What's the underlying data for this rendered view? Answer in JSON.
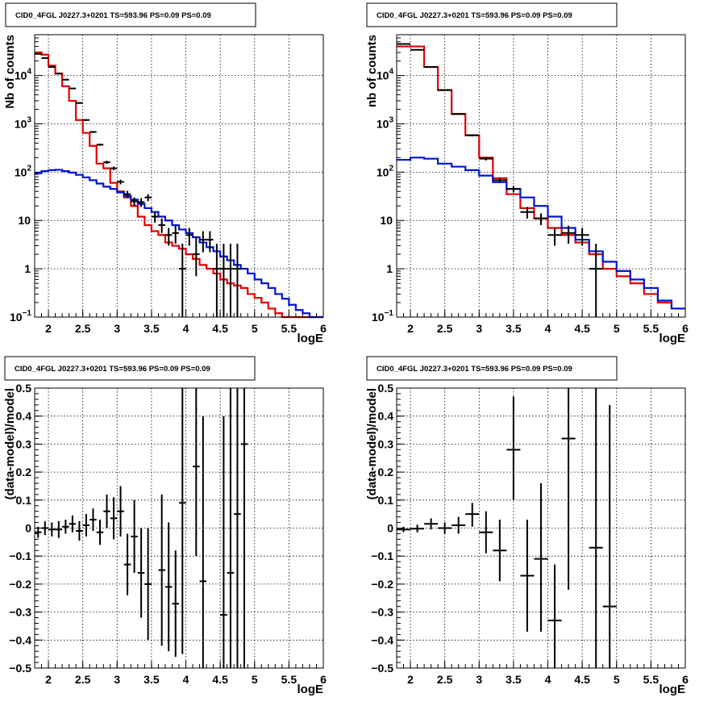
{
  "colors": {
    "total_model": "#e00000",
    "source_model": "#0014d2",
    "data": "#000000"
  },
  "chart_data": [
    {
      "type": "line",
      "title": "CID0_4FGL J0227.3+0201 TS=593.96 PS=0.09 PS=0.09",
      "xlabel": "logE",
      "ylabel": "Nb of counts",
      "xlim": [
        1.8,
        6.0
      ],
      "ylim": [
        0.1,
        70000
      ],
      "yscale": "log",
      "grid": true,
      "x_ticks": [
        "2",
        "2.5",
        "3",
        "3.5",
        "4",
        "4.5",
        "5",
        "5.5",
        "6"
      ],
      "y_ticks": [
        {
          "v": 0.1,
          "base": "10",
          "exp": "−1"
        },
        {
          "v": 1,
          "base": "1",
          "exp": ""
        },
        {
          "v": 10,
          "base": "10",
          "exp": ""
        },
        {
          "v": 100,
          "base": "10",
          "exp": "2"
        },
        {
          "v": 1000,
          "base": "10",
          "exp": "3"
        },
        {
          "v": 10000,
          "base": "10",
          "exp": "4"
        }
      ],
      "bin_width": 0.1,
      "series": [
        {
          "kind": "total_model",
          "x_start": 1.8,
          "values": [
            30000,
            27000,
            16000,
            11000,
            6000,
            3000,
            1200,
            650,
            350,
            150,
            120,
            60,
            40,
            30,
            20,
            12,
            8,
            6,
            5,
            3.5,
            3,
            2.6,
            2,
            1.6,
            1.2,
            1,
            0.8,
            0.6,
            0.5,
            0.45,
            0.4,
            0.3,
            0.25,
            0.2,
            0.15,
            0.12,
            0.1,
            0.09,
            0.08,
            0.07,
            0.06,
            0.06
          ]
        },
        {
          "kind": "source_model",
          "x_start": 1.8,
          "values": [
            95,
            105,
            110,
            112,
            105,
            98,
            88,
            78,
            68,
            58,
            50,
            45,
            38,
            32,
            27,
            22,
            18,
            15,
            12,
            10,
            8,
            6.5,
            5.5,
            4.5,
            3.5,
            2.8,
            2.3,
            1.8,
            1.5,
            1.2,
            1,
            0.8,
            0.6,
            0.5,
            0.4,
            0.3,
            0.24,
            0.18,
            0.14,
            0.12,
            0.1,
            0.08
          ]
        }
      ],
      "points": [
        {
          "x": 1.85,
          "y": 28000,
          "lo": 27600,
          "hi": 28400
        },
        {
          "x": 1.95,
          "y": 23000,
          "lo": 22600,
          "hi": 23400
        },
        {
          "x": 2.05,
          "y": 15000,
          "lo": 14700,
          "hi": 15300
        },
        {
          "x": 2.15,
          "y": 11000,
          "lo": 10700,
          "hi": 11300
        },
        {
          "x": 2.25,
          "y": 8200,
          "lo": 8000,
          "hi": 8400
        },
        {
          "x": 2.35,
          "y": 5400,
          "lo": 5250,
          "hi": 5550
        },
        {
          "x": 2.45,
          "y": 2700,
          "lo": 2600,
          "hi": 2800
        },
        {
          "x": 2.55,
          "y": 1200,
          "lo": 1150,
          "hi": 1250
        },
        {
          "x": 2.65,
          "y": 680,
          "lo": 650,
          "hi": 710
        },
        {
          "x": 2.75,
          "y": 370,
          "lo": 350,
          "hi": 390
        },
        {
          "x": 2.85,
          "y": 160,
          "lo": 148,
          "hi": 172
        },
        {
          "x": 2.95,
          "y": 120,
          "lo": 110,
          "hi": 130
        },
        {
          "x": 3.05,
          "y": 63,
          "lo": 56,
          "hi": 70
        },
        {
          "x": 3.15,
          "y": 35,
          "lo": 29,
          "hi": 41
        },
        {
          "x": 3.25,
          "y": 25,
          "lo": 20,
          "hi": 30
        },
        {
          "x": 3.35,
          "y": 24,
          "lo": 19,
          "hi": 29
        },
        {
          "x": 3.45,
          "y": 30,
          "lo": 25,
          "hi": 35
        },
        {
          "x": 3.55,
          "y": 12,
          "lo": 9,
          "hi": 15
        },
        {
          "x": 3.65,
          "y": 8,
          "lo": 5.5,
          "hi": 11
        },
        {
          "x": 3.75,
          "y": 5,
          "lo": 3,
          "hi": 7
        },
        {
          "x": 3.85,
          "y": 5.5,
          "lo": 3.3,
          "hi": 7.8
        },
        {
          "x": 3.95,
          "y": 1,
          "lo": 0.1,
          "hi": 3.3
        },
        {
          "x": 4.05,
          "y": 5,
          "lo": 3,
          "hi": 7
        },
        {
          "x": 4.15,
          "y": 2,
          "lo": 0.7,
          "hi": 4.7
        },
        {
          "x": 4.25,
          "y": 4,
          "lo": 2.2,
          "hi": 6
        },
        {
          "x": 4.35,
          "y": 4,
          "lo": 2.2,
          "hi": 6
        },
        {
          "x": 4.45,
          "y": 1,
          "lo": 0.1,
          "hi": 3.3
        },
        {
          "x": 4.55,
          "y": 1,
          "lo": 0.1,
          "hi": 3.3
        },
        {
          "x": 4.65,
          "y": 1,
          "lo": 0.1,
          "hi": 3.3
        },
        {
          "x": 4.75,
          "y": 1,
          "lo": 0.1,
          "hi": 3.3
        }
      ]
    },
    {
      "type": "line",
      "title": "CID0_4FGL J0227.3+0201 TS=593.96 PS=0.09 PS=0.09",
      "xlabel": "logE",
      "ylabel": "nb of counts",
      "xlim": [
        1.8,
        6.0
      ],
      "ylim": [
        0.1,
        70000
      ],
      "yscale": "log",
      "grid": true,
      "x_ticks": [
        "2",
        "2.5",
        "3",
        "3.5",
        "4",
        "4.5",
        "5",
        "5.5",
        "6"
      ],
      "y_ticks": [
        {
          "v": 0.1,
          "base": "10",
          "exp": "−1"
        },
        {
          "v": 1,
          "base": "1",
          "exp": ""
        },
        {
          "v": 10,
          "base": "10",
          "exp": ""
        },
        {
          "v": 100,
          "base": "10",
          "exp": "2"
        },
        {
          "v": 1000,
          "base": "10",
          "exp": "3"
        },
        {
          "v": 10000,
          "base": "10",
          "exp": "4"
        }
      ],
      "bin_width": 0.2,
      "series": [
        {
          "kind": "total_model",
          "x_start": 1.8,
          "values": [
            40000,
            40000,
            15000,
            5000,
            1600,
            580,
            200,
            75,
            35,
            18,
            11,
            7,
            5,
            3.5,
            2,
            1,
            0.7,
            0.5,
            0.3,
            0.2,
            0.15
          ]
        },
        {
          "kind": "source_model",
          "x_start": 1.8,
          "values": [
            180,
            200,
            190,
            150,
            130,
            110,
            85,
            62,
            45,
            30,
            20,
            12,
            7,
            4,
            2.3,
            1.4,
            0.9,
            0.6,
            0.4,
            0.22,
            0.15
          ]
        }
      ],
      "points": [
        {
          "x": 1.9,
          "y": 45000,
          "lo": 44500,
          "hi": 45500
        },
        {
          "x": 2.1,
          "y": 34000,
          "lo": 33600,
          "hi": 34400
        },
        {
          "x": 2.3,
          "y": 15000,
          "lo": 14700,
          "hi": 15300
        },
        {
          "x": 2.5,
          "y": 5000,
          "lo": 4850,
          "hi": 5150
        },
        {
          "x": 2.7,
          "y": 1600,
          "lo": 1550,
          "hi": 1650
        },
        {
          "x": 2.9,
          "y": 580,
          "lo": 550,
          "hi": 610
        },
        {
          "x": 3.1,
          "y": 190,
          "lo": 175,
          "hi": 205
        },
        {
          "x": 3.3,
          "y": 68,
          "lo": 60,
          "hi": 76
        },
        {
          "x": 3.5,
          "y": 45,
          "lo": 38,
          "hi": 52
        },
        {
          "x": 3.7,
          "y": 15,
          "lo": 11,
          "hi": 19
        },
        {
          "x": 3.9,
          "y": 11,
          "lo": 8,
          "hi": 14
        },
        {
          "x": 4.1,
          "y": 5,
          "lo": 3,
          "hi": 7
        },
        {
          "x": 4.3,
          "y": 5.5,
          "lo": 3.3,
          "hi": 7.8
        },
        {
          "x": 4.5,
          "y": 5,
          "lo": 3,
          "hi": 7
        },
        {
          "x": 4.7,
          "y": 1,
          "lo": 0.1,
          "hi": 3.3
        }
      ]
    },
    {
      "type": "scatter",
      "title": "CID0_4FGL J0227.3+0201 TS=593.96 PS=0.09 PS=0.09",
      "xlabel": "logE",
      "ylabel": "(data-model)/model",
      "xlim": [
        1.8,
        6.0
      ],
      "ylim": [
        -0.5,
        0.5
      ],
      "grid": true,
      "x_ticks": [
        "2",
        "2.5",
        "3",
        "3.5",
        "4",
        "4.5",
        "5",
        "5.5",
        "6"
      ],
      "y_ticks": [
        "−0.5",
        "−0.4",
        "−0.3",
        "−0.2",
        "−0.1",
        "0",
        "0.1",
        "0.2",
        "0.3",
        "0.4",
        "0.5"
      ],
      "half_width": 0.05,
      "points": [
        {
          "x": 1.85,
          "y": -0.015,
          "lo": -0.035,
          "hi": 0.005
        },
        {
          "x": 1.95,
          "y": 0.0,
          "lo": -0.025,
          "hi": 0.025
        },
        {
          "x": 2.05,
          "y": -0.005,
          "lo": -0.03,
          "hi": 0.02
        },
        {
          "x": 2.15,
          "y": -0.005,
          "lo": -0.035,
          "hi": 0.025
        },
        {
          "x": 2.25,
          "y": 0.005,
          "lo": -0.02,
          "hi": 0.03
        },
        {
          "x": 2.35,
          "y": 0.015,
          "lo": -0.015,
          "hi": 0.045
        },
        {
          "x": 2.45,
          "y": -0.01,
          "lo": -0.045,
          "hi": 0.025
        },
        {
          "x": 2.55,
          "y": 0.01,
          "lo": -0.03,
          "hi": 0.05
        },
        {
          "x": 2.65,
          "y": 0.03,
          "lo": -0.01,
          "hi": 0.07
        },
        {
          "x": 2.75,
          "y": -0.015,
          "lo": -0.06,
          "hi": 0.03
        },
        {
          "x": 2.85,
          "y": 0.06,
          "lo": 0.0,
          "hi": 0.12
        },
        {
          "x": 2.95,
          "y": 0.035,
          "lo": -0.04,
          "hi": 0.11
        },
        {
          "x": 3.05,
          "y": 0.06,
          "lo": -0.03,
          "hi": 0.15
        },
        {
          "x": 3.15,
          "y": -0.13,
          "lo": -0.24,
          "hi": -0.02
        },
        {
          "x": 3.25,
          "y": -0.03,
          "lo": -0.16,
          "hi": 0.1
        },
        {
          "x": 3.35,
          "y": -0.16,
          "lo": -0.32,
          "hi": 0.0
        },
        {
          "x": 3.45,
          "y": -0.2,
          "lo": -0.4,
          "hi": 0.0
        },
        {
          "x": 3.65,
          "y": -0.15,
          "lo": -0.42,
          "hi": 0.12
        },
        {
          "x": 3.75,
          "y": -0.21,
          "lo": -0.44,
          "hi": 0.02
        },
        {
          "x": 3.85,
          "y": -0.27,
          "lo": -0.46,
          "hi": -0.08
        },
        {
          "x": 3.95,
          "y": 0.09,
          "lo": -0.45,
          "hi": 0.5
        },
        {
          "x": 4.15,
          "y": 0.22,
          "lo": -0.1,
          "hi": 0.5
        },
        {
          "x": 4.25,
          "y": -0.19,
          "lo": -0.5,
          "hi": 0.4
        },
        {
          "x": 4.55,
          "y": -0.31,
          "lo": -0.5,
          "hi": 0.4
        },
        {
          "x": 4.65,
          "y": -0.16,
          "lo": -0.5,
          "hi": 0.5
        },
        {
          "x": 4.75,
          "y": 0.05,
          "lo": -0.5,
          "hi": 0.5
        },
        {
          "x": 4.85,
          "y": 0.3,
          "lo": -0.5,
          "hi": 0.5
        }
      ]
    },
    {
      "type": "scatter",
      "title": "CID0_4FGL J0227.3+0201 TS=593.96 PS=0.09 PS=0.09",
      "xlabel": "logE",
      "ylabel": "(data-model)/model",
      "xlim": [
        1.8,
        6.0
      ],
      "ylim": [
        -0.5,
        0.5
      ],
      "grid": true,
      "x_ticks": [
        "2",
        "2.5",
        "3",
        "3.5",
        "4",
        "4.5",
        "5",
        "5.5",
        "6"
      ],
      "y_ticks": [
        "−0.5",
        "−0.4",
        "−0.3",
        "−0.2",
        "−0.1",
        "0",
        "0.1",
        "0.2",
        "0.3",
        "0.4",
        "0.5"
      ],
      "half_width": 0.1,
      "points": [
        {
          "x": 1.9,
          "y": -0.005,
          "lo": -0.015,
          "hi": 0.005
        },
        {
          "x": 2.1,
          "y": -0.002,
          "lo": -0.015,
          "hi": 0.012
        },
        {
          "x": 2.3,
          "y": 0.015,
          "lo": -0.005,
          "hi": 0.035
        },
        {
          "x": 2.5,
          "y": 0.0,
          "lo": -0.02,
          "hi": 0.02
        },
        {
          "x": 2.7,
          "y": 0.01,
          "lo": -0.02,
          "hi": 0.04
        },
        {
          "x": 2.9,
          "y": 0.05,
          "lo": 0.005,
          "hi": 0.09
        },
        {
          "x": 3.1,
          "y": -0.015,
          "lo": -0.09,
          "hi": 0.06
        },
        {
          "x": 3.3,
          "y": -0.08,
          "lo": -0.19,
          "hi": 0.03
        },
        {
          "x": 3.5,
          "y": 0.28,
          "lo": 0.1,
          "hi": 0.47
        },
        {
          "x": 3.7,
          "y": -0.17,
          "lo": -0.37,
          "hi": 0.03
        },
        {
          "x": 3.9,
          "y": -0.11,
          "lo": -0.37,
          "hi": 0.16
        },
        {
          "x": 4.1,
          "y": -0.33,
          "lo": -0.5,
          "hi": -0.13
        },
        {
          "x": 4.3,
          "y": 0.32,
          "lo": -0.22,
          "hi": 0.5
        },
        {
          "x": 4.7,
          "y": -0.07,
          "lo": -0.5,
          "hi": 0.5
        },
        {
          "x": 4.9,
          "y": -0.28,
          "lo": -0.5,
          "hi": 0.44
        }
      ]
    }
  ]
}
